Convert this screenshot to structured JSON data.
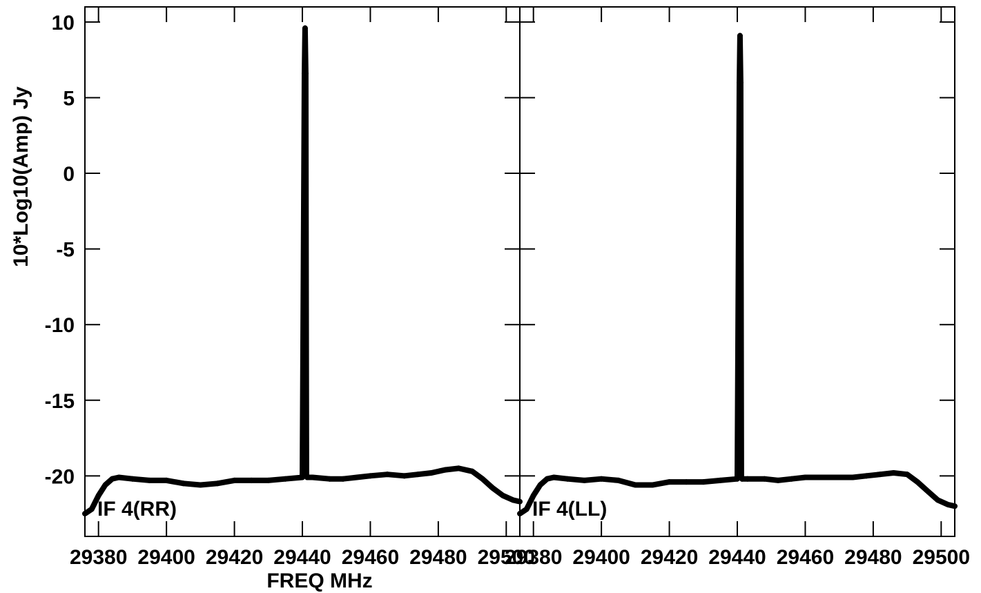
{
  "chart_data": {
    "type": "line",
    "xlabel": "FREQ MHz",
    "ylabel": "10*Log10(Amp) Jy",
    "xlim": [
      29376,
      29504
    ],
    "ylim": [
      -24,
      11
    ],
    "grid": false,
    "x_ticks": [
      29380,
      29400,
      29420,
      29440,
      29460,
      29480,
      29500
    ],
    "x_tick_labels": [
      "29380",
      "29400",
      "29420",
      "29440",
      "29460",
      "29480",
      "29500"
    ],
    "y_ticks": [
      10,
      5,
      0,
      -5,
      -10,
      -15,
      -20
    ],
    "y_tick_labels": [
      "10",
      "5",
      "0",
      "-5",
      "-10",
      "-15",
      "-20"
    ],
    "panels": [
      {
        "label": "IF 4(RR)",
        "series": [
          {
            "x": [
              29376,
              29378,
              29380,
              29382,
              29384,
              29386,
              29390,
              29395,
              29400,
              29405,
              29410,
              29415,
              29420,
              29425,
              29430,
              29435,
              29440,
              29440.6,
              29440.8,
              29441,
              29441.2,
              29441.4,
              29443,
              29448,
              29452,
              29456,
              29460,
              29465,
              29470,
              29474,
              29478,
              29482,
              29486,
              29490,
              29493,
              29496,
              29499,
              29502,
              29504
            ],
            "y": [
              -22.5,
              -22.2,
              -21.3,
              -20.6,
              -20.2,
              -20.1,
              -20.2,
              -20.3,
              -20.3,
              -20.5,
              -20.6,
              -20.5,
              -20.3,
              -20.3,
              -20.3,
              -20.2,
              -20.1,
              6.6,
              9.6,
              6.6,
              -20.0,
              -20.1,
              -20.1,
              -20.2,
              -20.2,
              -20.1,
              -20.0,
              -19.9,
              -20.0,
              -19.9,
              -19.8,
              -19.6,
              -19.5,
              -19.7,
              -20.2,
              -20.8,
              -21.3,
              -21.6,
              -21.7
            ]
          }
        ]
      },
      {
        "label": "IF 4(LL)",
        "series": [
          {
            "x": [
              29376,
              29378,
              29380,
              29382,
              29384,
              29386,
              29390,
              29395,
              29400,
              29405,
              29410,
              29415,
              29420,
              29425,
              29430,
              29435,
              29440,
              29440.6,
              29440.8,
              29441,
              29441.2,
              29441.4,
              29443,
              29448,
              29452,
              29456,
              29460,
              29465,
              29470,
              29474,
              29478,
              29482,
              29486,
              29490,
              29493,
              29496,
              29499,
              29502,
              29504
            ],
            "y": [
              -22.5,
              -22.2,
              -21.3,
              -20.6,
              -20.2,
              -20.1,
              -20.2,
              -20.3,
              -20.2,
              -20.3,
              -20.6,
              -20.6,
              -20.4,
              -20.4,
              -20.4,
              -20.3,
              -20.2,
              6.0,
              9.1,
              6.0,
              -20.1,
              -20.2,
              -20.2,
              -20.2,
              -20.3,
              -20.2,
              -20.1,
              -20.1,
              -20.1,
              -20.1,
              -20.0,
              -19.9,
              -19.8,
              -19.9,
              -20.4,
              -21.0,
              -21.6,
              -21.9,
              -22.0
            ]
          }
        ]
      }
    ]
  }
}
